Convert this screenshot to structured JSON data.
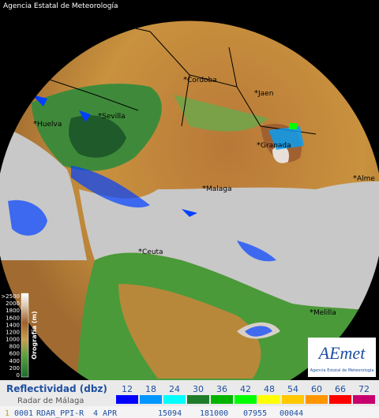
{
  "header": {
    "agency": "Agencia Estatal de Meteorología"
  },
  "map": {
    "cities": [
      "Cordoba",
      "Jaen",
      "Sevilla",
      "Huelva",
      "Granada",
      "Alme",
      "Malaga",
      "Ceuta",
      "Melilla"
    ]
  },
  "orography": {
    "title": "Orografía (m)",
    "levels": [
      ">2500",
      "2000",
      "1800",
      "1600",
      "1400",
      "1200",
      "1000",
      "800",
      "600",
      "400",
      "200",
      "0"
    ]
  },
  "logo": {
    "name": "AEmet",
    "subtitle": "Agencia Estatal de Meteorología"
  },
  "legend": {
    "title": "Reflectividad (dbz)",
    "subtitle": "Radar de Málaga",
    "steps": [
      {
        "label": "12",
        "color": "#0000ff"
      },
      {
        "label": "18",
        "color": "#0096ff"
      },
      {
        "label": "24",
        "color": "#00ffff"
      },
      {
        "label": "30",
        "color": "#1e7d2a"
      },
      {
        "label": "36",
        "color": "#00b400"
      },
      {
        "label": "42",
        "color": "#00ff00"
      },
      {
        "label": "48",
        "color": "#ffff00"
      },
      {
        "label": "54",
        "color": "#ffc800"
      },
      {
        "label": "60",
        "color": "#ff9600"
      },
      {
        "label": "66",
        "color": "#ff0000"
      },
      {
        "label": "72",
        "color": "#c8006e"
      }
    ]
  },
  "footer": {
    "fields": [
      "1",
      "0001",
      "RDAR_PPI-R",
      "4 APR",
      "15094",
      "181000",
      "07955",
      "00044"
    ]
  }
}
